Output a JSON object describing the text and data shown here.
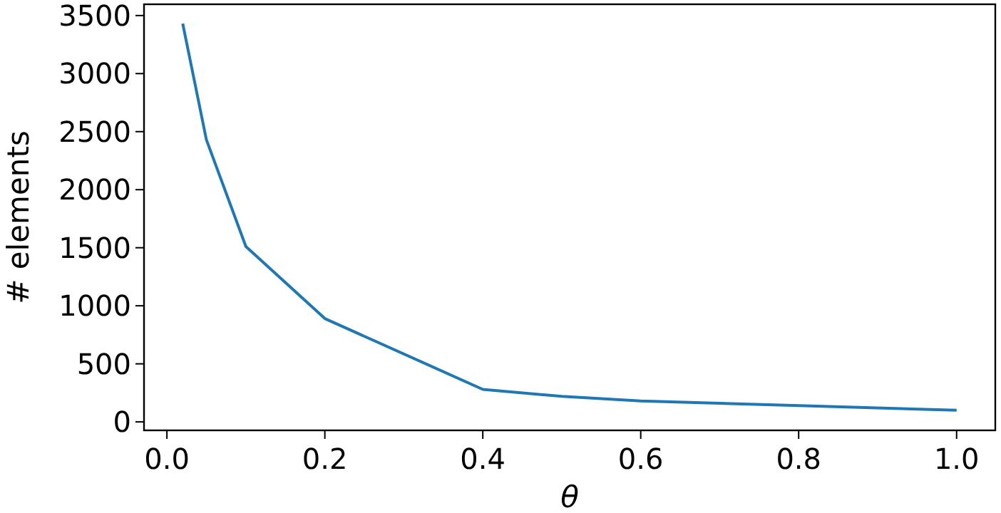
{
  "chart_data": {
    "type": "line",
    "xlabel": "θ",
    "ylabel": "# elements",
    "x": [
      0.02,
      0.05,
      0.1,
      0.2,
      0.4,
      0.5,
      0.6,
      0.8,
      1.0
    ],
    "series": [
      {
        "color": "#1f77b4",
        "values": [
          3430,
          2430,
          1510,
          890,
          280,
          220,
          180,
          140,
          100
        ]
      }
    ],
    "xlim": [
      -0.029,
      1.049
    ],
    "ylim": [
      -73,
      3597
    ],
    "xticks": [
      {
        "value": 0,
        "label": "0.0"
      },
      0.2,
      0.4,
      0.6,
      0.8,
      {
        "value": 1,
        "label": "1.0"
      }
    ],
    "yticks": [
      0,
      500,
      1000,
      1500,
      2000,
      2500,
      3000,
      3500
    ],
    "grid": false
  }
}
